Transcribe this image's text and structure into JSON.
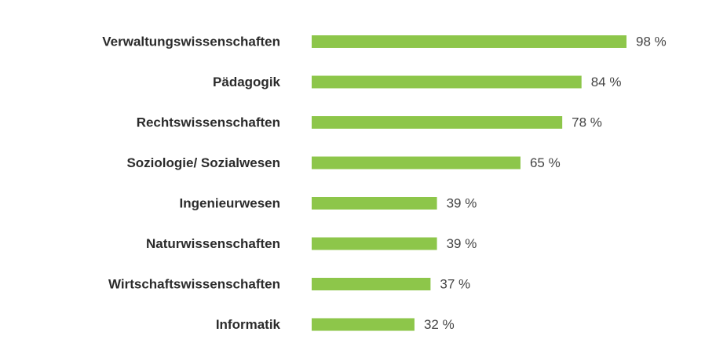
{
  "chart_data": {
    "type": "bar",
    "orientation": "horizontal",
    "categories": [
      "Verwaltungswissenschaften",
      "Pädagogik",
      "Rechtswissenschaften",
      "Soziologie/ Sozialwesen",
      "Ingenieurwesen",
      "Naturwissenschaften",
      "Wirtschaftswissenschaften",
      "Informatik"
    ],
    "values": [
      98,
      84,
      78,
      65,
      39,
      39,
      37,
      32
    ],
    "value_labels": [
      "98 %",
      "84 %",
      "78 %",
      "65 %",
      "39 %",
      "39 %",
      "37 %",
      "32 %"
    ],
    "color": "#8dc64a"
  }
}
